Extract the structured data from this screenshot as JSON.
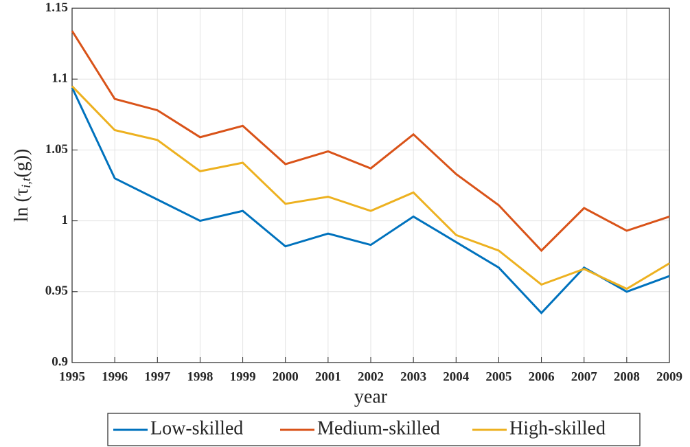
{
  "chart_data": {
    "type": "line",
    "x_label": "year",
    "y_label": {
      "parts": [
        "ln (τ",
        "i,t",
        "(g))"
      ]
    },
    "x": [
      1995,
      1996,
      1997,
      1998,
      1999,
      2000,
      2001,
      2002,
      2003,
      2004,
      2005,
      2006,
      2007,
      2008,
      2009
    ],
    "series": [
      {
        "name": "Low-skilled",
        "color": "#0072bd",
        "values": [
          1.094,
          1.03,
          1.015,
          1.0,
          1.007,
          0.982,
          0.991,
          0.983,
          1.003,
          0.985,
          0.967,
          0.935,
          0.967,
          0.95,
          0.961
        ]
      },
      {
        "name": "Medium-skilled",
        "color": "#d95319",
        "values": [
          1.134,
          1.086,
          1.078,
          1.059,
          1.067,
          1.04,
          1.049,
          1.037,
          1.061,
          1.033,
          1.011,
          0.979,
          1.009,
          0.993,
          1.003
        ]
      },
      {
        "name": "High-skilled",
        "color": "#edb120",
        "values": [
          1.095,
          1.064,
          1.057,
          1.035,
          1.041,
          1.012,
          1.017,
          1.007,
          1.02,
          0.99,
          0.979,
          0.955,
          0.966,
          0.952,
          0.97
        ]
      }
    ],
    "xlim": [
      1995,
      2009
    ],
    "xticks": [
      1995,
      1996,
      1997,
      1998,
      1999,
      2000,
      2001,
      2002,
      2003,
      2004,
      2005,
      2006,
      2007,
      2008,
      2009
    ],
    "ylim": [
      0.9,
      1.15
    ],
    "yticks": [
      0.9,
      0.95,
      1,
      1.05,
      1.1,
      1.15
    ],
    "grid": true,
    "legend": "bottom"
  }
}
